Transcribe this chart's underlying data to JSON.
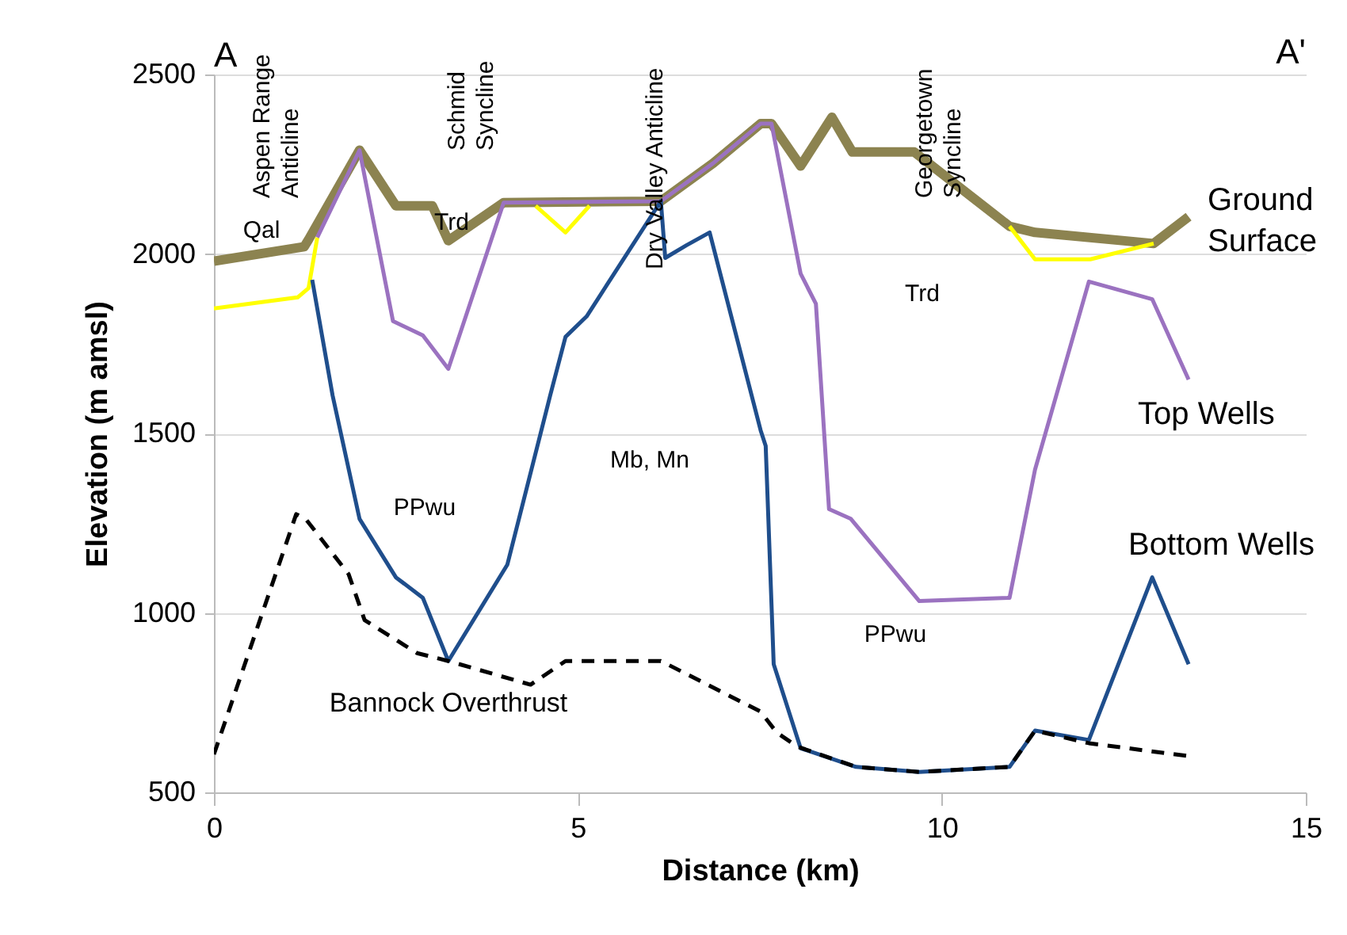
{
  "chart_data": {
    "type": "line",
    "xlabel": "Distance (km)",
    "ylabel": "Elevation (m amsl)",
    "xlim": [
      0,
      15
    ],
    "xticks": [
      0,
      5,
      10,
      15
    ],
    "ylim": [
      500,
      2500
    ],
    "yticks": [
      500,
      1000,
      1500,
      2000,
      2500
    ],
    "grid": "y",
    "legend": false,
    "marker": "none",
    "series": [
      {
        "name": "Ground Surface",
        "color": "#8c8350",
        "x": [
          0,
          1.24,
          1.3,
          2.0,
          2.5,
          3.0,
          3.22,
          3.98,
          6.14,
          6.86,
          7.51,
          7.66,
          8.06,
          8.49,
          8.77,
          9.62,
          10.93,
          11.28,
          12.91,
          13.39
        ],
        "values": [
          1980,
          2020,
          2040,
          2289,
          2134,
          2134,
          2037,
          2143,
          2147,
          2253,
          2363,
          2363,
          2245,
          2381,
          2284,
          2284,
          2077,
          2060,
          2029,
          2104
        ]
      },
      {
        "color": "#ffff00",
        "x": [
          0,
          1.15,
          1.3,
          1.42,
          4.2,
          4.42,
          4.83,
          5.16,
          5.5,
          10.93,
          11.28,
          12.04,
          12.91
        ],
        "values": [
          1848,
          1879,
          1905,
          2046,
          null,
          2134,
          2060,
          2134,
          null,
          2077,
          1985,
          1985,
          2029
        ]
      },
      {
        "name": "Top Wells",
        "color": "#9b72c0",
        "x": [
          1.42,
          2.0,
          2.46,
          2.87,
          3.22,
          3.98,
          6.14,
          6.86,
          7.51,
          7.66,
          8.06,
          8.27,
          8.45,
          8.75,
          9.69,
          10.93,
          11.28,
          12.02,
          12.89,
          13.39
        ],
        "values": [
          2046,
          2289,
          1813,
          1773,
          1680,
          2143,
          2147,
          2253,
          2363,
          2363,
          1945,
          1861,
          1289,
          1262,
          1033,
          1042,
          1399,
          1923,
          1874,
          1650
        ]
      },
      {
        "name": "Bottom Wells",
        "color": "#1f4e8c",
        "x": [
          1.35,
          1.63,
          2.0,
          2.5,
          2.87,
          3.22,
          4.03,
          4.62,
          4.83,
          5.12,
          6.14,
          6.2,
          6.49,
          6.81,
          7.51,
          7.58,
          7.69,
          8.06,
          8.82,
          9.69,
          10.93,
          11.28,
          12.02,
          12.89,
          13.39
        ],
        "values": [
          1928,
          1606,
          1262,
          1099,
          1042,
          866,
          1134,
          1606,
          1769,
          1826,
          2147,
          1989,
          2024,
          2060,
          1509,
          1465,
          857,
          623,
          571,
          557,
          571,
          672,
          646,
          1099,
          857
        ]
      },
      {
        "name": "Bannock Overthrust",
        "color": "#000000",
        "line_style": "dashed",
        "x": [
          0,
          1.13,
          1.26,
          1.85,
          2.07,
          2.79,
          3.22,
          4.35,
          4.83,
          6.14,
          7.51,
          7.73,
          8.01,
          8.82,
          9.69,
          10.93,
          11.28,
          12.02,
          13.39
        ],
        "values": [
          606,
          1275,
          1262,
          1108,
          980,
          888,
          866,
          800,
          866,
          866,
          725,
          667,
          628,
          571,
          557,
          571,
          672,
          637,
          601
        ]
      }
    ],
    "annotations": [
      "A",
      "A'",
      "Aspen Range\nAnticline",
      "Schmid\nSyncline",
      "Dry Valley Anticline",
      "Georgetown\nSyncline",
      "Qal",
      "Trd",
      "PPwu",
      "Mb, Mn",
      "Trd",
      "PPwu"
    ]
  }
}
